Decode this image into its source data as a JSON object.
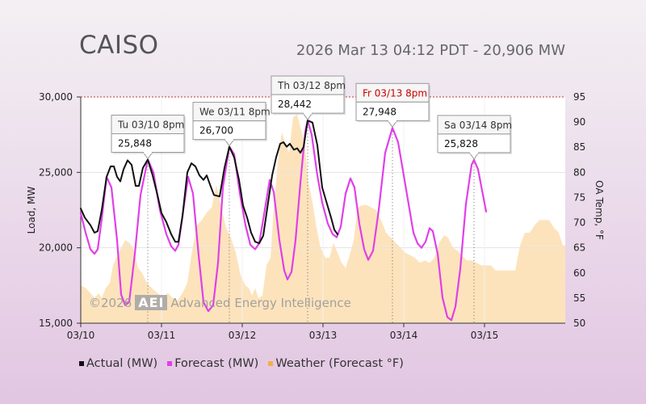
{
  "header": {
    "title": "CAISO",
    "subtitle": "2026 Mar 13 04:12 PDT - 20,906 MW"
  },
  "watermark": {
    "prefix": "©2026",
    "logo": "AEI",
    "text": "Advanced Energy Intelligence"
  },
  "colors": {
    "actual": "#111111",
    "forecast": "#e040e8",
    "weather": "#fde2b8",
    "weather_legend": "#f5b041"
  },
  "chart_data": {
    "type": "line",
    "title": "CAISO",
    "xlabel": "",
    "ylabel": "Load, MW",
    "y2label": "OA Temp, °F",
    "x_unit": "days since 03/10 00:00",
    "xlim": [
      0,
      6
    ],
    "ylim": [
      15000,
      30000
    ],
    "y2lim": [
      50,
      95
    ],
    "x_ticks": [
      {
        "x": 0,
        "label": "03/10"
      },
      {
        "x": 1,
        "label": "03/11"
      },
      {
        "x": 2,
        "label": "03/12"
      },
      {
        "x": 3,
        "label": "03/13"
      },
      {
        "x": 4,
        "label": "03/14"
      },
      {
        "x": 5,
        "label": "03/15"
      }
    ],
    "y_ticks": [
      {
        "v": 15000,
        "label": "15,000"
      },
      {
        "v": 20000,
        "label": "20,000"
      },
      {
        "v": 25000,
        "label": "25,000"
      },
      {
        "v": 30000,
        "label": "30,000"
      }
    ],
    "y2_ticks": [
      {
        "v": 50,
        "label": "50"
      },
      {
        "v": 55,
        "label": "55"
      },
      {
        "v": 60,
        "label": "60"
      },
      {
        "v": 65,
        "label": "65"
      },
      {
        "v": 70,
        "label": "70"
      },
      {
        "v": 75,
        "label": "75"
      },
      {
        "v": 80,
        "label": "80"
      },
      {
        "v": 85,
        "label": "85"
      },
      {
        "v": 90,
        "label": "90"
      },
      {
        "v": 95,
        "label": "95"
      }
    ],
    "legend": [
      {
        "key": "actual",
        "label": "Actual (MW)"
      },
      {
        "key": "forecast",
        "label": "Forecast (MW)"
      },
      {
        "key": "weather",
        "label": "Weather (Forecast °F)"
      }
    ],
    "series": [
      {
        "name": "Actual (MW)",
        "color": "#111111",
        "points": [
          [
            0,
            22600
          ],
          [
            0.05,
            22000
          ],
          [
            0.12,
            21500
          ],
          [
            0.17,
            21000
          ],
          [
            0.21,
            21100
          ],
          [
            0.26,
            22500
          ],
          [
            0.32,
            24700
          ],
          [
            0.37,
            25400
          ],
          [
            0.41,
            25400
          ],
          [
            0.45,
            24700
          ],
          [
            0.49,
            24400
          ],
          [
            0.53,
            25200
          ],
          [
            0.58,
            25800
          ],
          [
            0.63,
            25500
          ],
          [
            0.68,
            24100
          ],
          [
            0.72,
            24100
          ],
          [
            0.77,
            25300
          ],
          [
            0.83,
            25848
          ],
          [
            0.89,
            24800
          ],
          [
            0.95,
            23500
          ],
          [
            1.0,
            22300
          ],
          [
            1.06,
            21700
          ],
          [
            1.12,
            20900
          ],
          [
            1.17,
            20400
          ],
          [
            1.21,
            20400
          ],
          [
            1.26,
            22100
          ],
          [
            1.32,
            25000
          ],
          [
            1.37,
            25600
          ],
          [
            1.42,
            25400
          ],
          [
            1.47,
            24800
          ],
          [
            1.52,
            24500
          ],
          [
            1.56,
            24800
          ],
          [
            1.6,
            24200
          ],
          [
            1.65,
            23500
          ],
          [
            1.72,
            23400
          ],
          [
            1.78,
            25300
          ],
          [
            1.84,
            26700
          ],
          [
            1.9,
            26000
          ],
          [
            1.96,
            24500
          ],
          [
            2.01,
            22800
          ],
          [
            2.06,
            22000
          ],
          [
            2.11,
            21000
          ],
          [
            2.16,
            20400
          ],
          [
            2.21,
            20300
          ],
          [
            2.26,
            20800
          ],
          [
            2.32,
            23000
          ],
          [
            2.37,
            24800
          ],
          [
            2.42,
            26000
          ],
          [
            2.47,
            26900
          ],
          [
            2.51,
            27000
          ],
          [
            2.55,
            26700
          ],
          [
            2.59,
            26900
          ],
          [
            2.64,
            26500
          ],
          [
            2.68,
            26600
          ],
          [
            2.72,
            26300
          ],
          [
            2.76,
            26700
          ],
          [
            2.81,
            28442
          ],
          [
            2.87,
            28300
          ],
          [
            2.93,
            26800
          ],
          [
            2.99,
            24000
          ],
          [
            3.05,
            22900
          ],
          [
            3.1,
            22000
          ],
          [
            3.14,
            21200
          ],
          [
            3.18,
            20900
          ]
        ]
      },
      {
        "name": "Forecast (MW)",
        "color": "#e040e8",
        "points": [
          [
            0,
            22300
          ],
          [
            0.06,
            21000
          ],
          [
            0.12,
            19900
          ],
          [
            0.17,
            19600
          ],
          [
            0.21,
            19900
          ],
          [
            0.26,
            21900
          ],
          [
            0.32,
            24700
          ],
          [
            0.38,
            24000
          ],
          [
            0.45,
            20500
          ],
          [
            0.5,
            16900
          ],
          [
            0.55,
            16200
          ],
          [
            0.6,
            16400
          ],
          [
            0.67,
            19600
          ],
          [
            0.74,
            23500
          ],
          [
            0.83,
            25848
          ],
          [
            0.9,
            25000
          ],
          [
            0.98,
            22500
          ],
          [
            1.06,
            20900
          ],
          [
            1.12,
            20100
          ],
          [
            1.17,
            19800
          ],
          [
            1.21,
            20200
          ],
          [
            1.27,
            22500
          ],
          [
            1.33,
            24700
          ],
          [
            1.39,
            23600
          ],
          [
            1.46,
            19500
          ],
          [
            1.52,
            16400
          ],
          [
            1.58,
            15800
          ],
          [
            1.64,
            16200
          ],
          [
            1.7,
            19000
          ],
          [
            1.76,
            24000
          ],
          [
            1.84,
            26700
          ],
          [
            1.9,
            26200
          ],
          [
            1.97,
            23600
          ],
          [
            2.04,
            21500
          ],
          [
            2.1,
            20200
          ],
          [
            2.16,
            19900
          ],
          [
            2.21,
            20300
          ],
          [
            2.27,
            22200
          ],
          [
            2.34,
            24500
          ],
          [
            2.39,
            23700
          ],
          [
            2.46,
            20500
          ],
          [
            2.52,
            18500
          ],
          [
            2.56,
            17900
          ],
          [
            2.61,
            18400
          ],
          [
            2.66,
            20500
          ],
          [
            2.72,
            24300
          ],
          [
            2.78,
            27700
          ],
          [
            2.81,
            28442
          ],
          [
            2.86,
            27500
          ],
          [
            2.93,
            24800
          ],
          [
            2.99,
            23000
          ],
          [
            3.06,
            21600
          ],
          [
            3.12,
            20900
          ],
          [
            3.17,
            20700
          ],
          [
            3.22,
            21400
          ],
          [
            3.28,
            23600
          ],
          [
            3.34,
            24600
          ],
          [
            3.39,
            24000
          ],
          [
            3.45,
            21600
          ],
          [
            3.51,
            19900
          ],
          [
            3.56,
            19200
          ],
          [
            3.62,
            19800
          ],
          [
            3.69,
            22500
          ],
          [
            3.77,
            26300
          ],
          [
            3.86,
            27948
          ],
          [
            3.93,
            27000
          ],
          [
            4.0,
            24800
          ],
          [
            4.06,
            22900
          ],
          [
            4.12,
            21000
          ],
          [
            4.17,
            20300
          ],
          [
            4.22,
            20000
          ],
          [
            4.27,
            20400
          ],
          [
            4.32,
            21300
          ],
          [
            4.36,
            21100
          ],
          [
            4.42,
            19600
          ],
          [
            4.48,
            16700
          ],
          [
            4.54,
            15400
          ],
          [
            4.59,
            15200
          ],
          [
            4.64,
            16100
          ],
          [
            4.7,
            18600
          ],
          [
            4.77,
            22900
          ],
          [
            4.84,
            25500
          ],
          [
            4.87,
            25828
          ],
          [
            4.92,
            25200
          ],
          [
            4.97,
            23800
          ],
          [
            5.02,
            22400
          ]
        ]
      },
      {
        "name": "Weather (Forecast °F)",
        "color": "#fde2b8",
        "temps": [
          [
            0,
            57.5
          ],
          [
            0.06,
            57
          ],
          [
            0.12,
            56
          ],
          [
            0.17,
            55
          ],
          [
            0.22,
            56
          ],
          [
            0.26,
            55
          ],
          [
            0.31,
            57
          ],
          [
            0.36,
            58
          ],
          [
            0.4,
            61.5
          ],
          [
            0.44,
            63
          ],
          [
            0.5,
            65
          ],
          [
            0.55,
            66.5
          ],
          [
            0.6,
            66
          ],
          [
            0.65,
            65
          ],
          [
            0.71,
            61
          ],
          [
            0.76,
            60
          ],
          [
            0.82,
            58
          ],
          [
            0.88,
            57
          ],
          [
            0.95,
            56
          ],
          [
            1.02,
            55
          ],
          [
            1.08,
            56
          ],
          [
            1.14,
            55
          ],
          [
            1.2,
            54.5
          ],
          [
            1.26,
            56
          ],
          [
            1.32,
            58
          ],
          [
            1.38,
            64.5
          ],
          [
            1.44,
            69.5
          ],
          [
            1.5,
            70.5
          ],
          [
            1.56,
            72
          ],
          [
            1.62,
            73
          ],
          [
            1.68,
            77.5
          ],
          [
            1.74,
            73
          ],
          [
            1.8,
            69
          ],
          [
            1.86,
            67
          ],
          [
            1.92,
            64
          ],
          [
            1.98,
            59.5
          ],
          [
            2.04,
            57.5
          ],
          [
            2.08,
            57
          ],
          [
            2.12,
            55.5
          ],
          [
            2.16,
            57
          ],
          [
            2.2,
            55
          ],
          [
            2.25,
            55.5
          ],
          [
            2.3,
            61.5
          ],
          [
            2.35,
            63
          ],
          [
            2.39,
            73
          ],
          [
            2.44,
            82
          ],
          [
            2.49,
            88
          ],
          [
            2.53,
            86
          ],
          [
            2.58,
            84
          ],
          [
            2.63,
            91
          ],
          [
            2.68,
            91.5
          ],
          [
            2.72,
            89
          ],
          [
            2.77,
            86
          ],
          [
            2.82,
            78
          ],
          [
            2.87,
            74
          ],
          [
            2.92,
            69
          ],
          [
            2.97,
            65
          ],
          [
            3.03,
            63
          ],
          [
            3.08,
            63
          ],
          [
            3.13,
            66
          ],
          [
            3.18,
            64
          ],
          [
            3.23,
            62
          ],
          [
            3.28,
            61
          ],
          [
            3.33,
            63.5
          ],
          [
            3.38,
            66.5
          ],
          [
            3.43,
            73
          ],
          [
            3.49,
            73.5
          ],
          [
            3.55,
            73.5
          ],
          [
            3.6,
            73
          ],
          [
            3.66,
            72.5
          ],
          [
            3.72,
            70.5
          ],
          [
            3.78,
            68
          ],
          [
            3.84,
            67
          ],
          [
            3.9,
            66
          ],
          [
            3.96,
            65
          ],
          [
            4.02,
            64
          ],
          [
            4.08,
            63.5
          ],
          [
            4.14,
            63
          ],
          [
            4.2,
            62
          ],
          [
            4.26,
            62.5
          ],
          [
            4.32,
            62
          ],
          [
            4.38,
            63
          ],
          [
            4.44,
            66
          ],
          [
            4.5,
            67.5
          ],
          [
            4.55,
            67
          ],
          [
            4.61,
            65
          ],
          [
            4.66,
            64.5
          ],
          [
            4.72,
            63.5
          ],
          [
            4.78,
            62.5
          ],
          [
            4.84,
            62.5
          ],
          [
            4.9,
            62
          ],
          [
            4.96,
            61.5
          ],
          [
            5.02,
            61.5
          ],
          [
            5.08,
            61.5
          ],
          [
            5.14,
            60.5
          ],
          [
            5.2,
            60.5
          ],
          [
            5.26,
            60.5
          ],
          [
            5.32,
            60.5
          ],
          [
            5.38,
            60.5
          ],
          [
            5.44,
            65.5
          ],
          [
            5.5,
            68
          ],
          [
            5.56,
            68
          ],
          [
            5.62,
            69.5
          ],
          [
            5.68,
            70.5
          ],
          [
            5.74,
            70.5
          ],
          [
            5.8,
            70.5
          ],
          [
            5.86,
            69
          ],
          [
            5.92,
            68
          ],
          [
            5.97,
            65.5
          ],
          [
            6.0,
            65.5
          ]
        ]
      }
    ],
    "annotations": [
      {
        "x": 0.83,
        "value": 25848,
        "label": "Tu 03/10 8pm",
        "value_label": "25,848",
        "highlight": false
      },
      {
        "x": 1.84,
        "value": 26700,
        "label": "We 03/11 8pm",
        "value_label": "26,700",
        "highlight": false
      },
      {
        "x": 2.81,
        "value": 28442,
        "label": "Th 03/12 8pm",
        "value_label": "28,442",
        "highlight": false
      },
      {
        "x": 3.86,
        "value": 27948,
        "label": "Fr 03/13 8pm",
        "value_label": "27,948",
        "highlight": true
      },
      {
        "x": 4.87,
        "value": 25828,
        "label": "Sa 03/14 8pm",
        "value_label": "25,828",
        "highlight": false
      }
    ]
  }
}
